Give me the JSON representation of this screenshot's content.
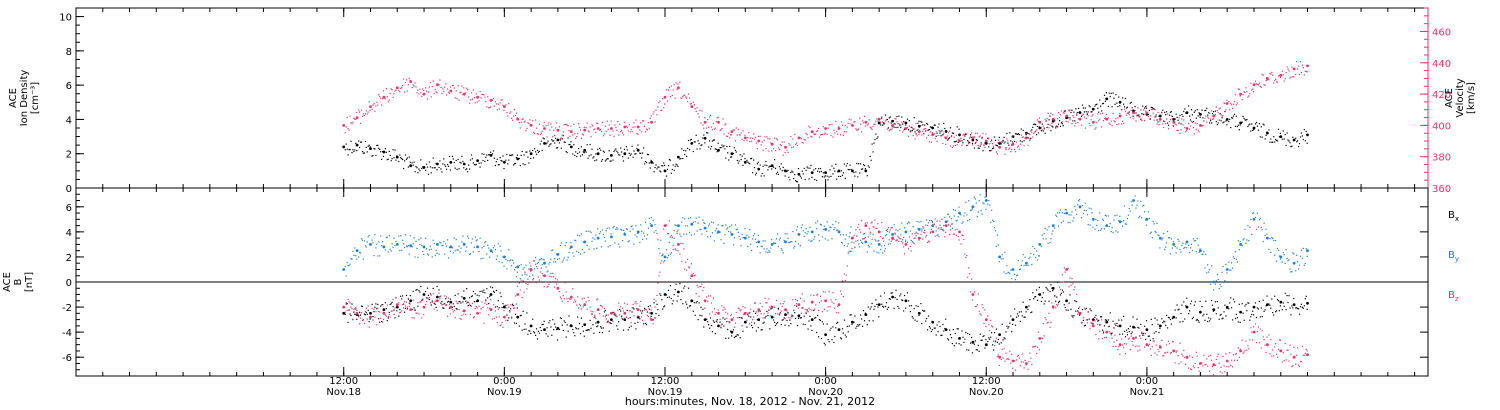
{
  "colors": {
    "black": "#000000",
    "pink": "#e8336b",
    "blue": "#1a7fd6"
  },
  "chart_data": [
    {
      "type": "scatter",
      "panel": "top",
      "left_axis": {
        "lines": [
          "ACE",
          "Ion Density",
          "[cm⁻³]"
        ],
        "ylim": [
          0,
          10.5
        ],
        "ticks": [
          "0",
          "2",
          "4",
          "6",
          "8",
          "10"
        ],
        "tick_values": [
          0,
          2,
          4,
          6,
          8,
          10
        ]
      },
      "right_axis": {
        "lines": [
          "ACE",
          "Velocity",
          "[km/s]"
        ],
        "ylim": [
          360,
          475
        ],
        "ticks": [
          "360",
          "380",
          "400",
          "420",
          "440",
          "460"
        ],
        "tick_values": [
          360,
          380,
          400,
          420,
          440,
          460
        ]
      },
      "series": [
        {
          "name": "Ion Density",
          "axis": "left",
          "color": "#000000",
          "x": [
            0,
            1,
            2,
            3,
            4,
            5,
            6,
            7,
            8,
            9,
            10,
            11,
            12,
            13,
            14,
            15,
            16,
            17,
            18,
            19,
            20,
            21,
            22,
            23,
            24,
            25,
            26,
            27,
            28,
            29,
            30,
            31,
            32,
            33,
            34,
            35,
            36,
            37,
            38,
            39,
            40,
            41,
            42,
            43,
            44,
            45,
            46,
            47,
            48,
            49,
            50,
            51,
            52,
            53,
            54,
            55,
            56,
            57,
            58,
            59,
            60,
            61,
            62,
            63,
            64,
            65,
            66,
            67,
            68,
            69,
            70,
            71,
            72
          ],
          "y": [
            2.4,
            2.5,
            2.3,
            2.1,
            1.8,
            1.3,
            1.2,
            1.4,
            1.5,
            1.4,
            1.6,
            1.9,
            1.5,
            1.7,
            2.0,
            2.6,
            2.8,
            2.4,
            2.2,
            2.0,
            1.9,
            2.0,
            2.2,
            1.5,
            1.0,
            1.8,
            2.6,
            2.9,
            2.2,
            2.0,
            1.5,
            1.1,
            1.3,
            1.0,
            0.8,
            0.9,
            0.9,
            1.0,
            1.0,
            1.0,
            3.8,
            3.9,
            3.8,
            3.6,
            3.5,
            3.3,
            3.1,
            2.8,
            2.6,
            2.6,
            3.0,
            3.2,
            3.5,
            3.9,
            4.1,
            4.4,
            4.6,
            5.2,
            5.0,
            4.5,
            4.3,
            4.2,
            4.0,
            4.4,
            4.3,
            4.2,
            4.0,
            3.8,
            3.5,
            3.2,
            3.0,
            2.8,
            3.1
          ]
        },
        {
          "name": "Velocity",
          "axis": "right",
          "color": "#e8336b",
          "x": [
            0,
            1,
            2,
            3,
            4,
            5,
            6,
            7,
            8,
            9,
            10,
            11,
            12,
            13,
            14,
            15,
            16,
            17,
            18,
            19,
            20,
            21,
            22,
            23,
            24,
            25,
            26,
            27,
            28,
            29,
            30,
            31,
            32,
            33,
            34,
            35,
            36,
            37,
            38,
            39,
            40,
            41,
            42,
            43,
            44,
            45,
            46,
            47,
            48,
            49,
            50,
            51,
            52,
            53,
            54,
            55,
            56,
            57,
            58,
            59,
            60,
            61,
            62,
            63,
            64,
            65,
            66,
            67,
            68,
            69,
            70,
            71,
            72
          ],
          "y": [
            400,
            405,
            412,
            418,
            424,
            428,
            420,
            426,
            422,
            420,
            418,
            416,
            412,
            404,
            400,
            398,
            397,
            396,
            397,
            398,
            398,
            399,
            399,
            402,
            418,
            424,
            412,
            402,
            402,
            396,
            392,
            390,
            388,
            386,
            392,
            396,
            398,
            398,
            400,
            402,
            404,
            400,
            398,
            396,
            394,
            392,
            390,
            392,
            390,
            386,
            388,
            392,
            402,
            404,
            406,
            404,
            402,
            404,
            406,
            408,
            408,
            404,
            402,
            398,
            400,
            406,
            414,
            420,
            426,
            430,
            432,
            436,
            438
          ]
        }
      ]
    },
    {
      "type": "scatter",
      "panel": "bottom",
      "left_axis": {
        "lines": [
          "ACE",
          "B",
          "[nT]"
        ],
        "ylim": [
          -7.5,
          7.5
        ],
        "ticks": [
          "-6",
          "-4",
          "-2",
          "0",
          "2",
          "4",
          "6"
        ],
        "tick_values": [
          -6,
          -4,
          -2,
          0,
          2,
          4,
          6
        ]
      },
      "zero_line": true,
      "legend": [
        "Bx",
        "By",
        "Bz"
      ],
      "series": [
        {
          "name": "Bx",
          "color": "#000000",
          "x": [
            0,
            1,
            2,
            3,
            4,
            5,
            6,
            7,
            8,
            9,
            10,
            11,
            12,
            13,
            14,
            15,
            16,
            17,
            18,
            19,
            20,
            21,
            22,
            23,
            24,
            25,
            26,
            27,
            28,
            29,
            30,
            31,
            32,
            33,
            34,
            35,
            36,
            37,
            38,
            39,
            40,
            41,
            42,
            43,
            44,
            45,
            46,
            47,
            48,
            49,
            50,
            51,
            52,
            53,
            54,
            55,
            56,
            57,
            58,
            59,
            60,
            61,
            62,
            63,
            64,
            65,
            66,
            67,
            68,
            69,
            70,
            71,
            72
          ],
          "y": [
            -2.5,
            -2.6,
            -2.5,
            -2.2,
            -2.0,
            -1.5,
            -1.0,
            -1.2,
            -1.6,
            -1.3,
            -1.5,
            -1.0,
            -2.0,
            -2.8,
            -3.5,
            -3.8,
            -3.7,
            -3.5,
            -3.4,
            -3.2,
            -3.0,
            -3.0,
            -2.8,
            -2.5,
            -1.0,
            -0.8,
            -1.5,
            -3.0,
            -3.5,
            -4.0,
            -3.2,
            -3.0,
            -2.8,
            -2.6,
            -2.7,
            -3.0,
            -4.2,
            -3.8,
            -3.2,
            -2.6,
            -1.8,
            -1.2,
            -1.5,
            -2.5,
            -3.2,
            -3.8,
            -4.5,
            -4.8,
            -5.0,
            -4.2,
            -3.0,
            -2.0,
            -1.0,
            -0.5,
            -1.5,
            -2.5,
            -3.0,
            -3.2,
            -3.5,
            -3.6,
            -3.8,
            -3.5,
            -2.8,
            -2.0,
            -2.4,
            -2.2,
            -2.0,
            -2.4,
            -2.0,
            -1.8,
            -1.6,
            -1.8,
            -1.7
          ]
        },
        {
          "name": "By",
          "color": "#1a7fd6",
          "x": [
            0,
            1,
            2,
            3,
            4,
            5,
            6,
            7,
            8,
            9,
            10,
            11,
            12,
            13,
            14,
            15,
            16,
            17,
            18,
            19,
            20,
            21,
            22,
            23,
            24,
            25,
            26,
            27,
            28,
            29,
            30,
            31,
            32,
            33,
            34,
            35,
            36,
            37,
            38,
            39,
            40,
            41,
            42,
            43,
            44,
            45,
            46,
            47,
            48,
            49,
            50,
            51,
            52,
            53,
            54,
            55,
            56,
            57,
            58,
            59,
            60,
            61,
            62,
            63,
            64,
            65,
            66,
            67,
            68,
            69,
            70,
            71,
            72
          ],
          "y": [
            1.0,
            2.5,
            3.0,
            2.8,
            3.0,
            2.9,
            2.8,
            3.0,
            2.8,
            3.0,
            2.8,
            2.5,
            2.0,
            1.2,
            1.0,
            1.5,
            2.2,
            2.8,
            3.2,
            3.5,
            3.6,
            3.8,
            4.0,
            4.5,
            2.0,
            4.5,
            4.6,
            4.3,
            4.0,
            3.8,
            3.5,
            3.2,
            3.0,
            3.2,
            3.8,
            4.0,
            4.2,
            4.0,
            3.5,
            3.2,
            3.0,
            3.8,
            4.0,
            4.2,
            4.5,
            4.8,
            5.5,
            6.0,
            6.5,
            2.0,
            1.0,
            1.5,
            3.0,
            4.5,
            5.5,
            6.0,
            5.0,
            4.5,
            4.8,
            6.5,
            5.0,
            3.5,
            3.0,
            3.2,
            2.5,
            0.0,
            1.0,
            3.0,
            5.0,
            3.5,
            2.0,
            1.5,
            2.5
          ]
        },
        {
          "name": "Bz",
          "color": "#e8336b",
          "x": [
            0,
            1,
            2,
            3,
            4,
            5,
            6,
            7,
            8,
            9,
            10,
            11,
            12,
            13,
            14,
            15,
            16,
            17,
            18,
            19,
            20,
            21,
            22,
            23,
            24,
            25,
            26,
            27,
            28,
            29,
            30,
            31,
            32,
            33,
            34,
            35,
            36,
            37,
            38,
            39,
            40,
            41,
            42,
            43,
            44,
            45,
            46,
            47,
            48,
            49,
            50,
            51,
            52,
            53,
            54,
            55,
            56,
            57,
            58,
            59,
            60,
            61,
            62,
            63,
            64,
            65,
            66,
            67,
            68,
            69,
            70,
            71,
            72
          ],
          "y": [
            -2.0,
            -2.5,
            -2.8,
            -2.5,
            -1.8,
            -2.2,
            -2.0,
            -1.5,
            -2.0,
            -2.3,
            -2.5,
            -2.2,
            -2.8,
            -1.0,
            1.0,
            0.5,
            -0.5,
            -1.2,
            -1.8,
            -2.2,
            -2.5,
            -2.5,
            -2.2,
            -3.0,
            4.5,
            3.0,
            0.5,
            -1.5,
            -2.5,
            -3.0,
            -2.5,
            -2.2,
            -2.0,
            -2.2,
            -1.8,
            -1.6,
            -1.5,
            -1.8,
            3.5,
            4.5,
            4.0,
            3.5,
            3.0,
            3.5,
            4.0,
            4.5,
            4.0,
            -1.0,
            -3.0,
            -6.0,
            -6.3,
            -6.5,
            -4.5,
            -2.0,
            1.0,
            -2.5,
            -3.5,
            -4.0,
            -5.0,
            -4.5,
            -5.0,
            -5.2,
            -5.5,
            -6.0,
            -6.5,
            -6.6,
            -6.3,
            -5.5,
            -4.0,
            -5.0,
            -5.5,
            -6.0,
            -5.8
          ]
        }
      ]
    }
  ],
  "x_axis": {
    "xlim": [
      -20,
      81
    ],
    "tick_values": [
      0,
      24,
      48,
      72
    ],
    "minor_step": 2,
    "labels": [
      {
        "time": "12:00",
        "date": "Nov.18",
        "x": 0
      },
      {
        "time": "0:00",
        "date": "Nov.19",
        "x": 12
      },
      {
        "time": "12:00",
        "date": "Nov.19",
        "x": 24
      },
      {
        "time": "0:00",
        "date": "Nov.20",
        "x": 36
      },
      {
        "time": "12:00",
        "date": "Nov.20",
        "x": 48
      },
      {
        "time": "0:00",
        "date": "Nov.21",
        "x": 60
      }
    ],
    "title": "hours:minutes, Nov. 18, 2012 - Nov. 21, 2012"
  }
}
